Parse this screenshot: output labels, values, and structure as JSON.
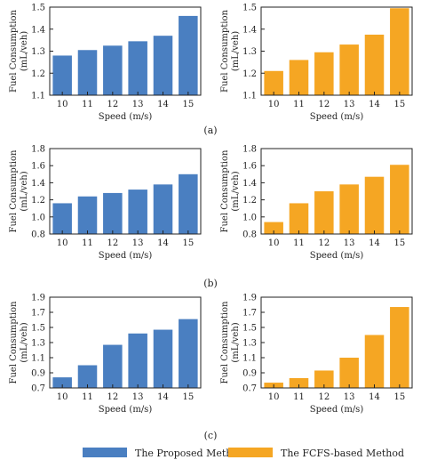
{
  "colors": {
    "proposed": "#4a7fc1",
    "fcfs": "#f5a623"
  },
  "legend": {
    "proposed": "The Proposed Method",
    "fcfs": "The FCFS-based Method"
  },
  "chart_data": [
    {
      "type": "bar",
      "panel": "(a)",
      "side": "left",
      "series_name": "The Proposed Method",
      "categories": [
        "10",
        "11",
        "12",
        "13",
        "14",
        "15"
      ],
      "values": [
        1.28,
        1.305,
        1.325,
        1.345,
        1.37,
        1.46
      ],
      "ylim": [
        1.1,
        1.5
      ],
      "yticks": [
        "1.1",
        "1.2",
        "1.3",
        "1.4",
        "1.5"
      ],
      "xlabel": "Speed (m/s)",
      "ylabel": "Fuel Consumption (mL/veh)"
    },
    {
      "type": "bar",
      "panel": "(a)",
      "side": "right",
      "series_name": "The FCFS-based Method",
      "categories": [
        "10",
        "11",
        "12",
        "13",
        "14",
        "15"
      ],
      "values": [
        1.21,
        1.26,
        1.295,
        1.33,
        1.375,
        1.495
      ],
      "ylim": [
        1.1,
        1.5
      ],
      "yticks": [
        "1.1",
        "1.2",
        "1.3",
        "1.4",
        "1.5"
      ],
      "xlabel": "Speed (m/s)",
      "ylabel": "Fuel Consumption (mL/veh)"
    },
    {
      "type": "bar",
      "panel": "(b)",
      "side": "left",
      "series_name": "The Proposed Method",
      "categories": [
        "10",
        "11",
        "12",
        "13",
        "14",
        "15"
      ],
      "values": [
        1.16,
        1.24,
        1.28,
        1.32,
        1.38,
        1.5
      ],
      "ylim": [
        0.8,
        1.8
      ],
      "yticks": [
        "0.8",
        "1.0",
        "1.2",
        "1.4",
        "1.6",
        "1.8"
      ],
      "xlabel": "Speed (m/s)",
      "ylabel": "Fuel Consumption (mL/veh)"
    },
    {
      "type": "bar",
      "panel": "(b)",
      "side": "right",
      "series_name": "The FCFS-based Method",
      "categories": [
        "10",
        "11",
        "12",
        "13",
        "14",
        "15"
      ],
      "values": [
        0.94,
        1.16,
        1.3,
        1.38,
        1.47,
        1.61
      ],
      "ylim": [
        0.8,
        1.8
      ],
      "yticks": [
        "0.8",
        "1.0",
        "1.2",
        "1.4",
        "1.6",
        "1.8"
      ],
      "xlabel": "Speed (m/s)",
      "ylabel": "Fuel Consumption (mL/veh)"
    },
    {
      "type": "bar",
      "panel": "(c)",
      "side": "left",
      "series_name": "The Proposed Method",
      "categories": [
        "10",
        "11",
        "12",
        "13",
        "14",
        "15"
      ],
      "values": [
        0.84,
        1.0,
        1.27,
        1.42,
        1.47,
        1.61
      ],
      "ylim": [
        0.7,
        1.9
      ],
      "yticks": [
        "0.7",
        "0.9",
        "1.1",
        "1.3",
        "1.5",
        "1.7",
        "1.9"
      ],
      "xlabel": "Speed (m/s)",
      "ylabel": "Fuel Consumption (mL/veh)"
    },
    {
      "type": "bar",
      "panel": "(c)",
      "side": "right",
      "series_name": "The FCFS-based Method",
      "categories": [
        "10",
        "11",
        "12",
        "13",
        "14",
        "15"
      ],
      "values": [
        0.77,
        0.83,
        0.93,
        1.1,
        1.4,
        1.77
      ],
      "ylim": [
        0.7,
        1.9
      ],
      "yticks": [
        "0.7",
        "0.9",
        "1.1",
        "1.3",
        "1.5",
        "1.7",
        "1.9"
      ],
      "xlabel": "Speed (m/s)",
      "ylabel": "Fuel Consumption (mL/veh)"
    }
  ]
}
